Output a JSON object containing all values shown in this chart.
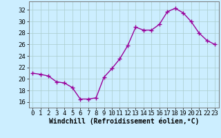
{
  "x": [
    0,
    1,
    2,
    3,
    4,
    5,
    6,
    7,
    8,
    9,
    10,
    11,
    12,
    13,
    14,
    15,
    16,
    17,
    18,
    19,
    20,
    21,
    22,
    23
  ],
  "y": [
    21.0,
    20.8,
    20.5,
    19.5,
    19.3,
    18.5,
    16.5,
    16.5,
    16.7,
    20.3,
    21.8,
    23.5,
    25.8,
    29.0,
    28.5,
    28.5,
    29.5,
    31.7,
    32.3,
    31.5,
    30.0,
    28.0,
    26.7,
    26.0
  ],
  "line_color": "#990099",
  "marker": "+",
  "marker_size": 4,
  "bg_color": "#cceeff",
  "grid_color": "#aacccc",
  "xlabel": "Windchill (Refroidissement éolien,°C)",
  "xlabel_fontsize": 7,
  "ylabel_ticks": [
    16,
    18,
    20,
    22,
    24,
    26,
    28,
    30,
    32
  ],
  "ylim": [
    15.0,
    33.5
  ],
  "xlim": [
    -0.5,
    23.5
  ],
  "tick_fontsize": 6.5,
  "line_width": 1.0
}
